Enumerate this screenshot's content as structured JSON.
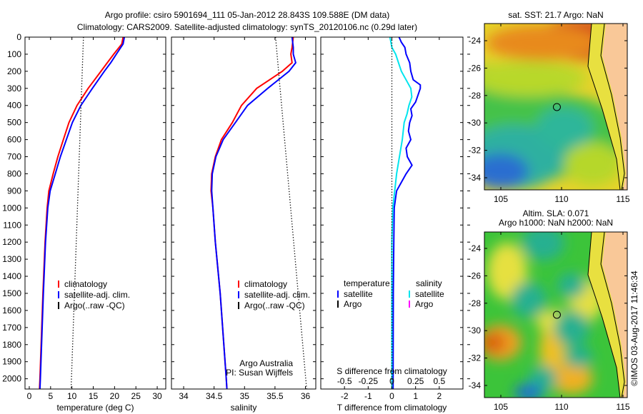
{
  "title": {
    "line1": "Argo profile: csiro 5901694_111 05-Jan-2012 28.843S 109.588E (DM data)",
    "line2": "Climatology: CARS2009. Satellite-adjusted climatology: synTS_20120106.nc (0.29d later)"
  },
  "colors": {
    "climatology": "#ff0000",
    "satellite": "#0000ff",
    "argo": "#000000",
    "sal_satellite": "#00e5ee",
    "sal_argo": "#ff00ff",
    "land": "#f9c898"
  },
  "depth_axis": {
    "ticks": [
      0,
      100,
      200,
      300,
      400,
      500,
      600,
      700,
      800,
      900,
      1000,
      1100,
      1200,
      1300,
      1400,
      1500,
      1600,
      1700,
      1800,
      1900,
      2000
    ],
    "range": [
      0,
      2060
    ]
  },
  "chart_data": [
    {
      "type": "line",
      "id": "temperature",
      "xlabel": "temperature (deg C)",
      "ylabel": "depth",
      "xlim": [
        -1,
        32
      ],
      "xticks": [
        0,
        5,
        10,
        15,
        20,
        25,
        30
      ],
      "legend": [
        "climatology",
        "satellite-adj. clim.",
        "Argo(..raw -QC)"
      ],
      "legend_position": "bottom-center",
      "series": [
        {
          "name": "climatology",
          "color": "#ff0000",
          "depth": [
            0,
            40,
            100,
            150,
            200,
            300,
            400,
            500,
            600,
            700,
            800,
            900,
            1000,
            1200,
            1500,
            2000,
            2060
          ],
          "values": [
            22,
            21.7,
            19.8,
            18.3,
            16.8,
            13.8,
            11.2,
            9.3,
            8.0,
            6.7,
            5.6,
            4.6,
            4.2,
            3.7,
            3.2,
            2.5,
            2.4
          ]
        },
        {
          "name": "satellite-adj. clim.",
          "color": "#0000ff",
          "depth": [
            0,
            40,
            100,
            150,
            200,
            300,
            400,
            500,
            600,
            700,
            800,
            900,
            1000,
            1200,
            1500,
            2000,
            2060
          ],
          "values": [
            22.3,
            22.0,
            20.4,
            19.1,
            17.6,
            14.8,
            12.1,
            10.1,
            8.7,
            7.3,
            6.1,
            4.9,
            4.35,
            3.8,
            3.3,
            2.6,
            2.5
          ]
        },
        {
          "name": "Argo(..raw -QC)",
          "color": "#000000",
          "dotted": true,
          "depth": [
            0,
            2060
          ],
          "values": [
            12.7,
            9.8
          ]
        }
      ]
    },
    {
      "type": "line",
      "id": "salinity",
      "xlabel": "salinity",
      "xlim": [
        33.8,
        36.17
      ],
      "xticks": [
        34,
        34.5,
        35,
        35.5,
        36
      ],
      "legend": [
        "climatology",
        "satellite-adj. clim.",
        "Argo(..raw -QC)"
      ],
      "annotation": [
        "Argo Australia",
        "PI: Susan Wijffels"
      ],
      "series": [
        {
          "name": "climatology",
          "color": "#ff0000",
          "depth": [
            0,
            60,
            100,
            150,
            200,
            300,
            400,
            500,
            600,
            700,
            800,
            900,
            1000,
            1200,
            1500,
            2000,
            2060
          ],
          "values": [
            35.8,
            35.78,
            35.76,
            35.78,
            35.62,
            35.2,
            34.95,
            34.8,
            34.62,
            34.52,
            34.46,
            34.45,
            34.48,
            34.52,
            34.6,
            34.7,
            34.71
          ]
        },
        {
          "name": "satellite-adj. clim.",
          "color": "#0000ff",
          "depth": [
            0,
            60,
            100,
            150,
            200,
            300,
            400,
            500,
            600,
            700,
            800,
            900,
            1000,
            1200,
            1500,
            2000,
            2060
          ],
          "values": [
            35.78,
            35.8,
            35.8,
            35.84,
            35.73,
            35.38,
            35.05,
            34.85,
            34.65,
            34.53,
            34.47,
            34.46,
            34.48,
            34.52,
            34.6,
            34.7,
            34.71
          ]
        },
        {
          "name": "Argo(..raw -QC)",
          "color": "#000000",
          "dotted": true,
          "depth": [
            0,
            2060
          ],
          "values": [
            35.51,
            36.02
          ]
        }
      ]
    },
    {
      "type": "line",
      "id": "difference",
      "xlabel": "T difference from climatology",
      "xlabel2": "S difference from climatology",
      "xlim": [
        -3,
        3
      ],
      "xticks": [
        -2,
        -1,
        0,
        1,
        2
      ],
      "xticks2": [
        -0.5,
        -0.25,
        0,
        0.25,
        0.5
      ],
      "xtick2_labels": [
        "-0.5",
        "-0.25",
        "0",
        "0.25",
        "0.5"
      ],
      "legend_headers": [
        "temperature",
        "salinity"
      ],
      "legend": [
        "satellite",
        "Argo",
        "satellite",
        "Argo"
      ],
      "series": [
        {
          "name": "T satellite",
          "color": "#0000ff",
          "units": "degC",
          "depth": [
            0,
            30,
            60,
            100,
            150,
            200,
            250,
            280,
            300,
            340,
            380,
            420,
            460,
            500,
            550,
            600,
            650,
            700,
            750,
            800,
            850,
            900,
            1000,
            1200,
            1500,
            2000,
            2060
          ],
          "values": [
            0.3,
            0.4,
            0.55,
            0.6,
            0.75,
            0.8,
            0.9,
            1.2,
            1.2,
            1.1,
            1.0,
            0.8,
            0.85,
            0.75,
            0.7,
            0.8,
            0.6,
            0.65,
            0.85,
            0.6,
            0.4,
            0.2,
            0.1,
            0.08,
            0.06,
            0.05,
            0.05
          ]
        },
        {
          "name": "S satellite",
          "color": "#00e5ee",
          "units": "psu",
          "depth": [
            0,
            30,
            60,
            100,
            150,
            200,
            250,
            300,
            350,
            400,
            450,
            500,
            600,
            700,
            800,
            900,
            1000,
            1200,
            1500,
            2000,
            2060
          ],
          "values": [
            -0.02,
            -0.01,
            0.0,
            0.04,
            0.07,
            0.1,
            0.15,
            0.2,
            0.21,
            0.18,
            0.16,
            0.13,
            0.11,
            0.08,
            0.05,
            0.03,
            0.01,
            0.0,
            0.0,
            0.0,
            0.0
          ]
        },
        {
          "name": "T Argo",
          "color": "#000000",
          "dotted": true,
          "depth": [
            0,
            2060
          ],
          "values": [
            0,
            0
          ]
        }
      ]
    }
  ],
  "maps": [
    {
      "title": "sat. SST: 21.7 Argo: NaN",
      "lon_ticks": [
        "105",
        "110",
        "115"
      ],
      "lat_ticks": [
        "-24",
        "-26",
        "-28",
        "-30",
        "-32",
        "-34"
      ],
      "marker": {
        "lat": -28.843,
        "lon": 109.588
      }
    },
    {
      "title1": "Altim. SLA: 0.071",
      "title2": "Argo h1000: NaN h2000: NaN",
      "lon_ticks": [
        "105",
        "110",
        "115"
      ],
      "lat_ticks": [
        "-24",
        "-26",
        "-28",
        "-30",
        "-32",
        "-34"
      ],
      "marker": {
        "lat": -28.843,
        "lon": 109.588
      }
    }
  ],
  "timestamp": "©IMOS 03-Aug-2017 11:46:34"
}
